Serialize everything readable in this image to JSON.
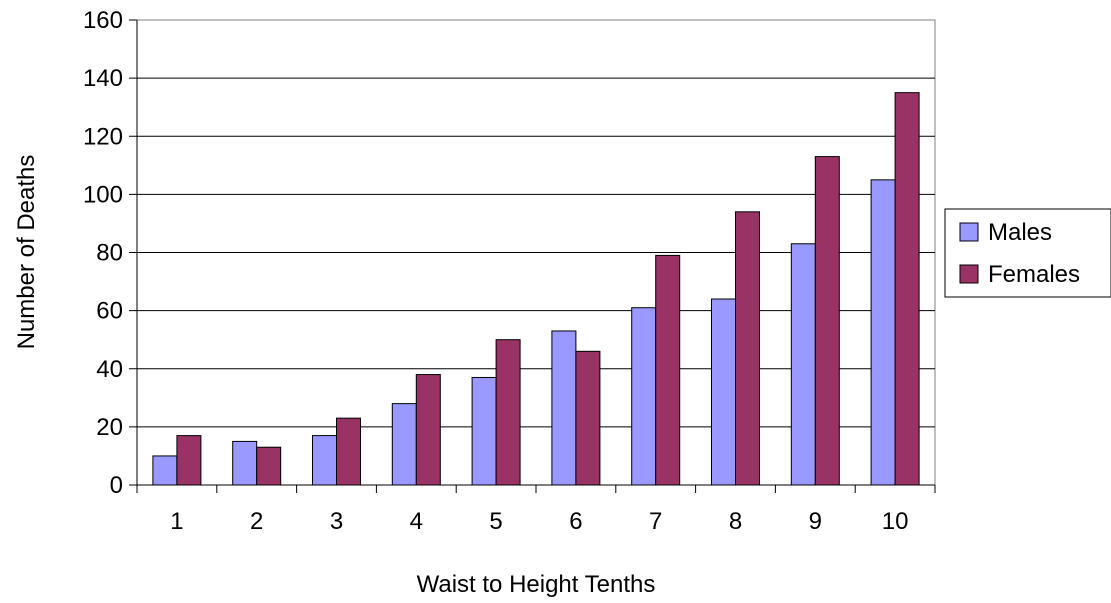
{
  "chart_data": {
    "type": "bar",
    "title": "",
    "xlabel": "Waist to Height Tenths",
    "ylabel": "Number of Deaths",
    "categories": [
      "1",
      "2",
      "3",
      "4",
      "5",
      "6",
      "7",
      "8",
      "9",
      "10"
    ],
    "series": [
      {
        "name": "Males",
        "color": "#9999ff",
        "values": [
          10,
          15,
          17,
          28,
          37,
          53,
          61,
          64,
          83,
          105
        ]
      },
      {
        "name": "Females",
        "color": "#993366",
        "values": [
          17,
          13,
          23,
          38,
          50,
          46,
          79,
          94,
          113,
          135
        ]
      }
    ],
    "ylim": [
      0,
      160
    ],
    "yticks": [
      "0",
      "20",
      "40",
      "60",
      "80",
      "100",
      "120",
      "140",
      "160"
    ],
    "grid": true,
    "legend_position": "right"
  }
}
